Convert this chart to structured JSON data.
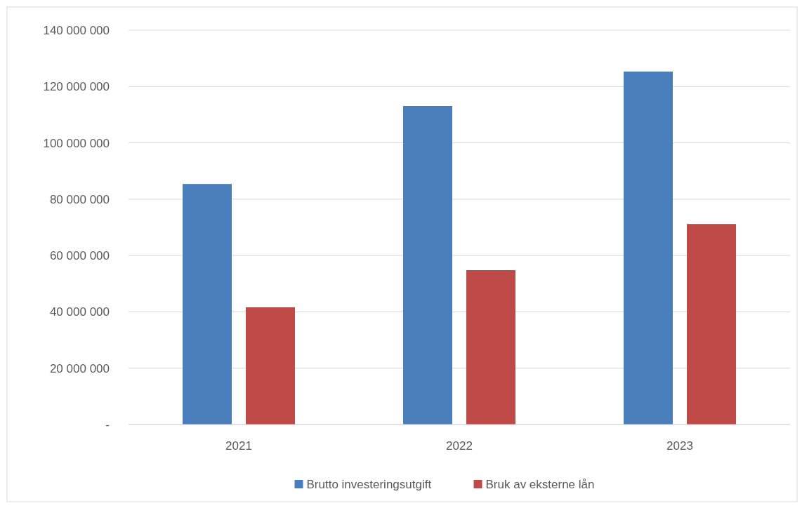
{
  "chart_data": {
    "type": "bar",
    "categories": [
      "2021",
      "2022",
      "2023"
    ],
    "series": [
      {
        "name": "Brutto investeringsutgift",
        "color": "#4a7ebb",
        "values": [
          85400000,
          113100000,
          125300000
        ]
      },
      {
        "name": "Bruk av eksterne lån",
        "color": "#be4b48",
        "values": [
          41600000,
          54800000,
          71200000
        ]
      }
    ],
    "ylim": [
      0,
      140000000
    ],
    "yticks": [
      {
        "value": 0,
        "label": "-"
      },
      {
        "value": 20000000,
        "label": "20 000 000"
      },
      {
        "value": 40000000,
        "label": "40 000 000"
      },
      {
        "value": 60000000,
        "label": "60 000 000"
      },
      {
        "value": 80000000,
        "label": "80 000 000"
      },
      {
        "value": 100000000,
        "label": "100 000 000"
      },
      {
        "value": 120000000,
        "label": "120 000 000"
      },
      {
        "value": 140000000,
        "label": "140 000 000"
      }
    ],
    "grid": "y",
    "legend": "bottom"
  }
}
